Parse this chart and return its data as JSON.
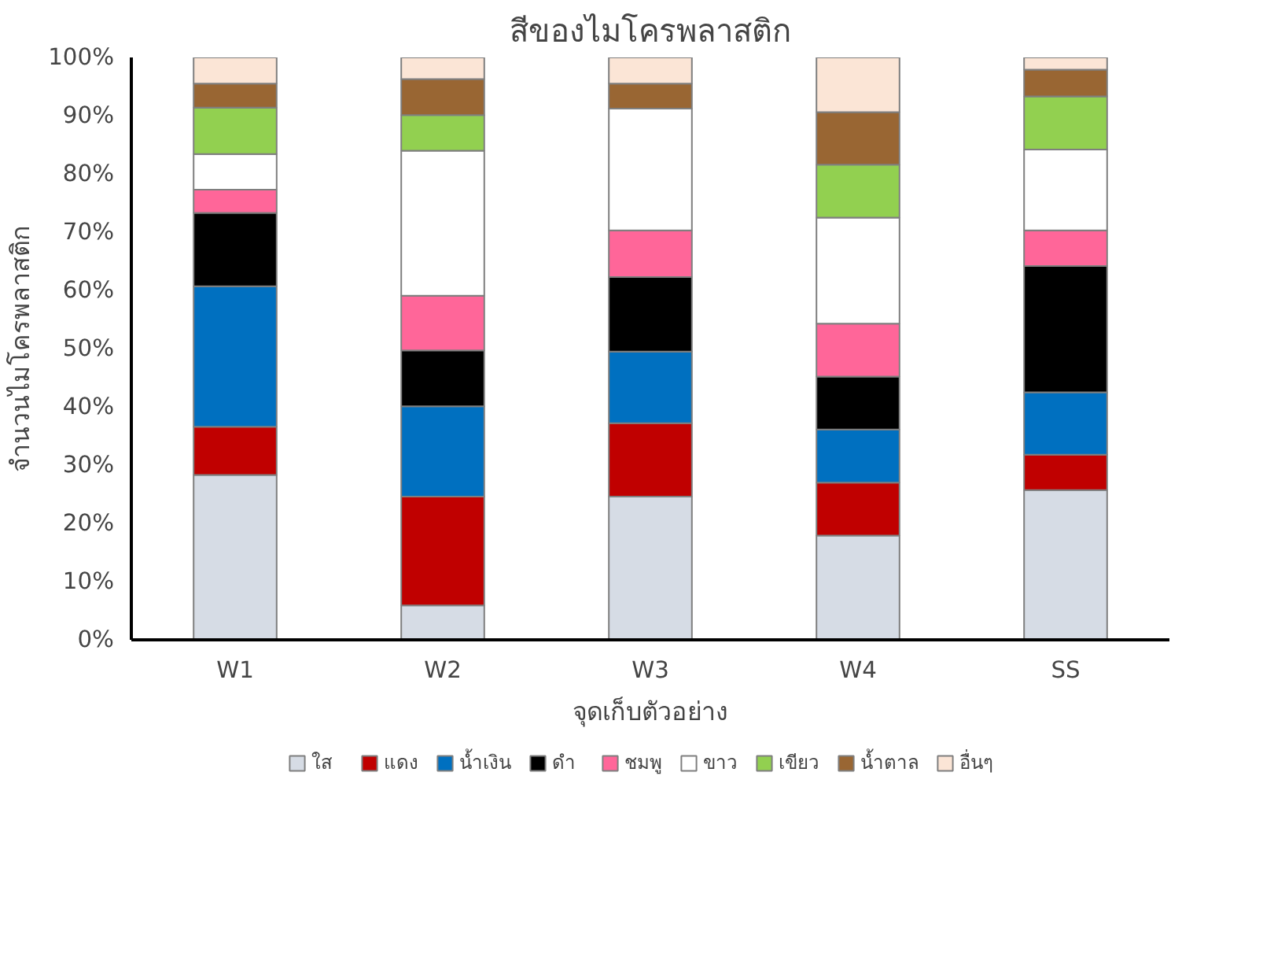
{
  "chart_data": {
    "type": "bar",
    "stacked": true,
    "title": "สีของไมโครพลาสติก",
    "xlabel": "จุดเก็บตัวอย่าง",
    "ylabel": "จำนวนไมโครพลาสติก",
    "categories": [
      "W1",
      "W2",
      "W3",
      "W4",
      "SS"
    ],
    "series": [
      {
        "name": "ใส",
        "color": "#d6dce5",
        "values": [
          28.3,
          5.9,
          24.6,
          17.9,
          25.7
        ]
      },
      {
        "name": "แดง",
        "color": "#c00000",
        "values": [
          8.3,
          18.7,
          12.6,
          9.1,
          6.1
        ]
      },
      {
        "name": "น้ำเงิน",
        "color": "#0070c0",
        "values": [
          24.1,
          15.5,
          12.3,
          9.1,
          10.7
        ]
      },
      {
        "name": "ดำ",
        "color": "#000000",
        "values": [
          12.6,
          9.6,
          12.8,
          9.1,
          21.7
        ]
      },
      {
        "name": "ชมพู",
        "color": "#ff6699",
        "values": [
          4.0,
          9.4,
          8.0,
          9.1,
          6.1
        ]
      },
      {
        "name": "ขาว",
        "color": "#ffffff",
        "values": [
          6.1,
          24.9,
          20.9,
          18.2,
          13.9
        ]
      },
      {
        "name": "เขียว",
        "color": "#92d050",
        "values": [
          8.0,
          6.1,
          0,
          9.1,
          9.1
        ]
      },
      {
        "name": "น้ำตาล",
        "color": "#996633",
        "values": [
          4.1,
          6.2,
          4.3,
          9.0,
          4.6
        ]
      },
      {
        "name": "อื่นๆ",
        "color": "#fbe5d6",
        "values": [
          4.5,
          3.7,
          4.5,
          9.4,
          2.1
        ]
      }
    ],
    "ylim": [
      0,
      100
    ],
    "yticks": [
      {
        "value": 0,
        "label": "0%"
      },
      {
        "value": 10,
        "label": "10%"
      },
      {
        "value": 20,
        "label": "20%"
      },
      {
        "value": 30,
        "label": "30%"
      },
      {
        "value": 40,
        "label": "40%"
      },
      {
        "value": 50,
        "label": "50%"
      },
      {
        "value": 60,
        "label": "60%"
      },
      {
        "value": 70,
        "label": "70%"
      },
      {
        "value": 80,
        "label": "80%"
      },
      {
        "value": 90,
        "label": "90%"
      },
      {
        "value": 100,
        "label": "100%"
      }
    ],
    "grid": false,
    "legend": "bottom"
  }
}
